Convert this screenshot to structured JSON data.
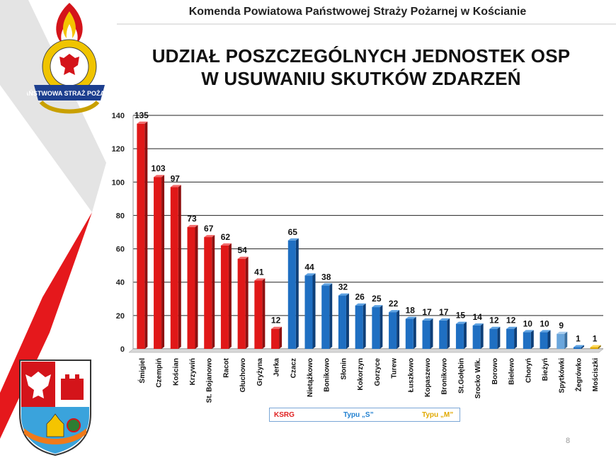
{
  "header": "Komenda Powiatowa Państwowej Straży Pożarnej w Kościanie",
  "title_line1": "UDZIAŁ POSZCZEGÓLNYCH JEDNOSTEK OSP",
  "title_line2": "W USUWANIU SKUTKÓW ZDARZEŃ",
  "logo_text": "PAŃSTWOWA STRAŻ POŻARNA",
  "page_number": "8",
  "legend": [
    {
      "label": "KSRG",
      "color": "#e02020"
    },
    {
      "label": "Typu „S”",
      "color": "#1f7fd0"
    },
    {
      "label": "Typu „M”",
      "color": "#e0a800"
    }
  ],
  "colors": {
    "red": "#e01818",
    "blue": "#1f6fc2",
    "lightblue": "#6aa6dc",
    "gold": "#e0a800"
  },
  "chart_data": {
    "type": "bar",
    "categories": [
      "Śmigiel",
      "Czempiń",
      "Kościan",
      "Krzywiń",
      "St. Bojanowo",
      "Racot",
      "Głuchowo",
      "Gryżyna",
      "Jerka",
      "Czacz",
      "Nietążkowo",
      "Bonikowo",
      "Słonin",
      "Kokorzyn",
      "Gorzyce",
      "Turew",
      "Łuszkowo",
      "Kopaszewo",
      "Bronikowo",
      "St.Gołębin",
      "Srocko Wlk.",
      "Borowo",
      "Bielewo",
      "Choryń",
      "Bieżyń",
      "Spytkówki",
      "Żegrówko",
      "Mościszki"
    ],
    "values": [
      135,
      103,
      97,
      73,
      67,
      62,
      54,
      41,
      12,
      65,
      44,
      38,
      32,
      26,
      25,
      22,
      18,
      17,
      17,
      15,
      14,
      12,
      12,
      10,
      10,
      9,
      1,
      1
    ],
    "groups": [
      "KSRG",
      "KSRG",
      "KSRG",
      "KSRG",
      "KSRG",
      "KSRG",
      "KSRG",
      "KSRG",
      "KSRG",
      "S",
      "S",
      "S",
      "S",
      "S",
      "S",
      "S",
      "S",
      "S",
      "S",
      "S",
      "S",
      "S",
      "S",
      "S",
      "S",
      "S",
      "S",
      "M"
    ],
    "bar_colors": [
      "red",
      "red",
      "red",
      "red",
      "red",
      "red",
      "red",
      "red",
      "red",
      "blue",
      "blue",
      "blue",
      "blue",
      "blue",
      "blue",
      "blue",
      "blue",
      "blue",
      "blue",
      "blue",
      "blue",
      "blue",
      "blue",
      "blue",
      "blue",
      "lightblue",
      "blue",
      "gold"
    ],
    "ylim": [
      0,
      140
    ],
    "yticks": [
      0,
      20,
      40,
      60,
      80,
      100,
      120,
      140
    ],
    "grid": true,
    "title": "",
    "xlabel": "",
    "ylabel": ""
  }
}
